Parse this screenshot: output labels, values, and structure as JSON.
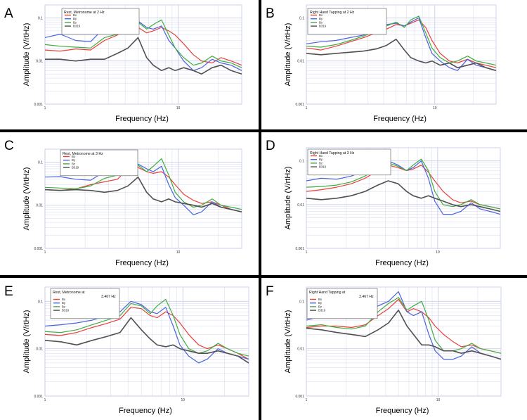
{
  "figure": {
    "colors": {
      "bx": "#e8413a",
      "by": "#4a62e0",
      "bz": "#3fae3f",
      "b319": "#505050",
      "grid": "#c9cdea",
      "axis": "#000000"
    }
  },
  "chart_data": [
    {
      "type": "line",
      "panel_letter": "A",
      "legend_title": [
        "Rest, Metronome at 2 Hz"
      ],
      "legend": [
        "Bx",
        "By",
        "Bz",
        "B319"
      ],
      "xlabel": "Frequency (Hz)",
      "ylabel": "Amplitude (V/rtHz)",
      "xscale": "log",
      "yscale": "log",
      "xlim": [
        1,
        30
      ],
      "ylim": [
        0.001,
        0.2
      ],
      "xticks": [
        "1",
        "10"
      ],
      "yticks": [
        "0.001",
        "0.01",
        "0.1"
      ],
      "x": [
        1,
        1.3,
        1.7,
        2.2,
        2.8,
        3.5,
        4.2,
        5,
        5.8,
        6.5,
        7.5,
        8.5,
        9.5,
        11,
        13,
        15,
        18,
        21,
        25,
        30
      ],
      "series": [
        {
          "name": "Bx",
          "values": [
            0.018,
            0.017,
            0.019,
            0.018,
            0.03,
            0.04,
            0.065,
            0.06,
            0.045,
            0.05,
            0.06,
            0.05,
            0.04,
            0.025,
            0.014,
            0.01,
            0.009,
            0.012,
            0.01,
            0.008
          ]
        },
        {
          "name": "By",
          "values": [
            0.035,
            0.042,
            0.03,
            0.028,
            0.06,
            0.065,
            0.09,
            0.085,
            0.06,
            0.055,
            0.065,
            0.03,
            0.02,
            0.01,
            0.006,
            0.007,
            0.011,
            0.009,
            0.008,
            0.006
          ]
        },
        {
          "name": "Bz",
          "values": [
            0.024,
            0.022,
            0.021,
            0.02,
            0.035,
            0.042,
            0.075,
            0.08,
            0.055,
            0.07,
            0.09,
            0.04,
            0.02,
            0.012,
            0.008,
            0.009,
            0.013,
            0.01,
            0.009,
            0.007
          ]
        },
        {
          "name": "B319",
          "values": [
            0.011,
            0.011,
            0.01,
            0.011,
            0.011,
            0.015,
            0.02,
            0.035,
            0.012,
            0.008,
            0.006,
            0.007,
            0.006,
            0.007,
            0.006,
            0.005,
            0.007,
            0.008,
            0.006,
            0.005
          ]
        }
      ]
    },
    {
      "type": "line",
      "panel_letter": "B",
      "legend_title": [
        "Right Hand Tapping at 2 Hz"
      ],
      "legend": [
        "Bx",
        "By",
        "Bz",
        "B319"
      ],
      "xlabel": "Frequency (Hz)",
      "ylabel": "Amplitude (V/rtHz)",
      "xscale": "log",
      "yscale": "log",
      "xlim": [
        1,
        30
      ],
      "ylim": [
        0.001,
        0.2
      ],
      "xticks": [
        "1",
        "10"
      ],
      "yticks": [
        "0.001",
        "0.01",
        "0.1"
      ],
      "x": [
        1,
        1.3,
        1.7,
        2.2,
        2.8,
        3.5,
        4.2,
        5,
        5.8,
        6.5,
        7.5,
        8.5,
        9.5,
        11,
        13,
        15,
        18,
        21,
        25,
        30
      ],
      "series": [
        {
          "name": "Bx",
          "values": [
            0.02,
            0.018,
            0.022,
            0.028,
            0.035,
            0.045,
            0.055,
            0.07,
            0.065,
            0.075,
            0.09,
            0.06,
            0.03,
            0.015,
            0.01,
            0.009,
            0.011,
            0.009,
            0.008,
            0.007
          ]
        },
        {
          "name": "By",
          "values": [
            0.025,
            0.028,
            0.03,
            0.035,
            0.04,
            0.06,
            0.07,
            0.075,
            0.065,
            0.08,
            0.1,
            0.035,
            0.015,
            0.01,
            0.007,
            0.006,
            0.011,
            0.008,
            0.007,
            0.006
          ]
        },
        {
          "name": "Bz",
          "values": [
            0.022,
            0.021,
            0.024,
            0.03,
            0.038,
            0.05,
            0.065,
            0.08,
            0.06,
            0.09,
            0.11,
            0.045,
            0.02,
            0.012,
            0.009,
            0.01,
            0.013,
            0.01,
            0.009,
            0.008
          ]
        },
        {
          "name": "B319",
          "values": [
            0.015,
            0.014,
            0.015,
            0.016,
            0.017,
            0.019,
            0.023,
            0.032,
            0.018,
            0.012,
            0.01,
            0.009,
            0.01,
            0.008,
            0.009,
            0.007,
            0.008,
            0.009,
            0.007,
            0.006
          ]
        }
      ]
    },
    {
      "type": "line",
      "panel_letter": "C",
      "legend_title": [
        "Rest, Metronome at 3 Hz"
      ],
      "legend": [
        "Bx",
        "By",
        "Bz",
        "B319"
      ],
      "xlabel": "Frequency (Hz)",
      "ylabel": "Amplitude (V/rtHz)",
      "xscale": "log",
      "yscale": "log",
      "xlim": [
        1,
        30
      ],
      "ylim": [
        0.001,
        0.2
      ],
      "xticks": [
        "1",
        "10"
      ],
      "yticks": [
        "0.001",
        "0.01",
        "0.1"
      ],
      "x": [
        1,
        1.3,
        1.7,
        2.2,
        2.8,
        3.5,
        4.2,
        5,
        5.8,
        6.5,
        7.5,
        8.5,
        9.5,
        11,
        13,
        15,
        18,
        21,
        25,
        30
      ],
      "series": [
        {
          "name": "Bx",
          "values": [
            0.023,
            0.022,
            0.024,
            0.03,
            0.035,
            0.04,
            0.07,
            0.075,
            0.06,
            0.055,
            0.06,
            0.045,
            0.03,
            0.018,
            0.013,
            0.011,
            0.012,
            0.01,
            0.008,
            0.007
          ]
        },
        {
          "name": "By",
          "values": [
            0.045,
            0.046,
            0.04,
            0.038,
            0.06,
            0.07,
            0.1,
            0.09,
            0.07,
            0.06,
            0.08,
            0.03,
            0.015,
            0.01,
            0.006,
            0.007,
            0.012,
            0.009,
            0.008,
            0.007
          ]
        },
        {
          "name": "Bz",
          "values": [
            0.026,
            0.025,
            0.024,
            0.028,
            0.042,
            0.05,
            0.09,
            0.085,
            0.06,
            0.08,
            0.12,
            0.05,
            0.02,
            0.012,
            0.009,
            0.01,
            0.014,
            0.01,
            0.009,
            0.008
          ]
        },
        {
          "name": "B319",
          "values": [
            0.023,
            0.022,
            0.023,
            0.022,
            0.02,
            0.022,
            0.028,
            0.045,
            0.02,
            0.014,
            0.012,
            0.014,
            0.012,
            0.011,
            0.01,
            0.009,
            0.011,
            0.009,
            0.008,
            0.007
          ]
        }
      ]
    },
    {
      "type": "line",
      "panel_letter": "D",
      "legend_title": [
        "Right Hand Tapping at 3 Hz"
      ],
      "legend": [
        "Bx",
        "By",
        "Bz",
        "B319"
      ],
      "xlabel": "Frequency (Hz)",
      "ylabel": "Amplitude (V/rtHz)",
      "xscale": "log",
      "yscale": "log",
      "xlim": [
        1,
        30
      ],
      "ylim": [
        0.001,
        0.2
      ],
      "xticks": [
        "1",
        "10"
      ],
      "yticks": [
        "0.001",
        "0.01",
        "0.1"
      ],
      "x": [
        1,
        1.3,
        1.7,
        2.2,
        2.8,
        3.5,
        4.2,
        5,
        5.8,
        6.5,
        7.5,
        8.5,
        9.5,
        11,
        13,
        15,
        18,
        21,
        25,
        30
      ],
      "series": [
        {
          "name": "Bx",
          "values": [
            0.02,
            0.022,
            0.025,
            0.03,
            0.04,
            0.06,
            0.08,
            0.07,
            0.06,
            0.065,
            0.08,
            0.055,
            0.035,
            0.02,
            0.013,
            0.011,
            0.012,
            0.01,
            0.009,
            0.008
          ]
        },
        {
          "name": "By",
          "values": [
            0.035,
            0.04,
            0.038,
            0.045,
            0.06,
            0.09,
            0.1,
            0.08,
            0.06,
            0.07,
            0.1,
            0.04,
            0.012,
            0.006,
            0.006,
            0.007,
            0.011,
            0.008,
            0.007,
            0.006
          ]
        },
        {
          "name": "Bz",
          "values": [
            0.025,
            0.026,
            0.028,
            0.033,
            0.045,
            0.07,
            0.09,
            0.075,
            0.06,
            0.08,
            0.11,
            0.06,
            0.02,
            0.01,
            0.009,
            0.01,
            0.013,
            0.01,
            0.009,
            0.008
          ]
        },
        {
          "name": "B319",
          "values": [
            0.014,
            0.013,
            0.014,
            0.016,
            0.02,
            0.028,
            0.035,
            0.03,
            0.02,
            0.016,
            0.014,
            0.016,
            0.014,
            0.012,
            0.01,
            0.009,
            0.01,
            0.009,
            0.008,
            0.007
          ]
        }
      ]
    },
    {
      "type": "line",
      "panel_letter": "E",
      "legend_title": [
        "Rest, Metronome at",
        "3.467 Hz"
      ],
      "legend": [
        "Bx",
        "By",
        "Bz",
        "B319"
      ],
      "xlabel": "Frequency (Hz)",
      "ylabel": "Amplitude (V/rtHz)",
      "xscale": "log",
      "yscale": "log",
      "xlim": [
        1,
        30
      ],
      "ylim": [
        0.001,
        0.2
      ],
      "xticks": [
        "1",
        "10"
      ],
      "yticks": [
        "0.001",
        "0.01",
        "0.1"
      ],
      "x": [
        1,
        1.3,
        1.7,
        2.2,
        2.8,
        3.5,
        4.2,
        5,
        5.8,
        6.5,
        7.5,
        8.5,
        9.5,
        11,
        13,
        15,
        18,
        21,
        25,
        30
      ],
      "series": [
        {
          "name": "Bx",
          "values": [
            0.02,
            0.019,
            0.022,
            0.028,
            0.034,
            0.042,
            0.075,
            0.07,
            0.05,
            0.045,
            0.06,
            0.05,
            0.035,
            0.02,
            0.012,
            0.01,
            0.012,
            0.01,
            0.008,
            0.006
          ]
        },
        {
          "name": "By",
          "values": [
            0.03,
            0.032,
            0.035,
            0.04,
            0.05,
            0.06,
            0.1,
            0.085,
            0.06,
            0.055,
            0.075,
            0.03,
            0.012,
            0.007,
            0.005,
            0.006,
            0.01,
            0.008,
            0.007,
            0.006
          ]
        },
        {
          "name": "Bz",
          "values": [
            0.023,
            0.022,
            0.025,
            0.032,
            0.04,
            0.05,
            0.09,
            0.08,
            0.055,
            0.08,
            0.11,
            0.05,
            0.02,
            0.01,
            0.008,
            0.009,
            0.013,
            0.01,
            0.008,
            0.007
          ]
        },
        {
          "name": "B319",
          "values": [
            0.015,
            0.014,
            0.012,
            0.015,
            0.018,
            0.022,
            0.045,
            0.025,
            0.016,
            0.012,
            0.011,
            0.012,
            0.01,
            0.009,
            0.008,
            0.008,
            0.009,
            0.008,
            0.007,
            0.005
          ]
        }
      ]
    },
    {
      "type": "line",
      "panel_letter": "F",
      "legend_title": [
        "Right Hand Tapping at",
        "3.467 Hz"
      ],
      "legend": [
        "Bx",
        "By",
        "Bz",
        "B319"
      ],
      "xlabel": "Frequency (Hz)",
      "ylabel": "Amplitude (V/rtHz)",
      "xscale": "log",
      "yscale": "log",
      "xlim": [
        1,
        30
      ],
      "ylim": [
        0.001,
        0.2
      ],
      "xticks": [
        "1",
        "10"
      ],
      "yticks": [
        "0.001",
        "0.01",
        "0.1"
      ],
      "x": [
        1,
        1.3,
        1.7,
        2.2,
        2.8,
        3.5,
        4.2,
        5,
        5.8,
        6.5,
        7.5,
        8.5,
        9.5,
        11,
        13,
        15,
        18,
        21,
        25,
        30
      ],
      "series": [
        {
          "name": "Bx",
          "values": [
            0.028,
            0.03,
            0.03,
            0.028,
            0.032,
            0.05,
            0.07,
            0.11,
            0.06,
            0.07,
            0.06,
            0.045,
            0.03,
            0.02,
            0.014,
            0.011,
            0.012,
            0.01,
            0.009,
            0.008
          ]
        },
        {
          "name": "By",
          "values": [
            0.04,
            0.048,
            0.05,
            0.055,
            0.06,
            0.08,
            0.1,
            0.16,
            0.06,
            0.05,
            0.06,
            0.02,
            0.009,
            0.006,
            0.006,
            0.007,
            0.011,
            0.008,
            0.007,
            0.006
          ]
        },
        {
          "name": "Bz",
          "values": [
            0.03,
            0.032,
            0.028,
            0.026,
            0.03,
            0.06,
            0.09,
            0.12,
            0.065,
            0.08,
            0.1,
            0.04,
            0.015,
            0.009,
            0.009,
            0.01,
            0.013,
            0.01,
            0.009,
            0.008
          ]
        },
        {
          "name": "B319",
          "values": [
            0.027,
            0.025,
            0.022,
            0.02,
            0.018,
            0.025,
            0.035,
            0.065,
            0.03,
            0.02,
            0.012,
            0.012,
            0.011,
            0.009,
            0.009,
            0.008,
            0.009,
            0.008,
            0.007,
            0.006
          ]
        }
      ]
    }
  ]
}
